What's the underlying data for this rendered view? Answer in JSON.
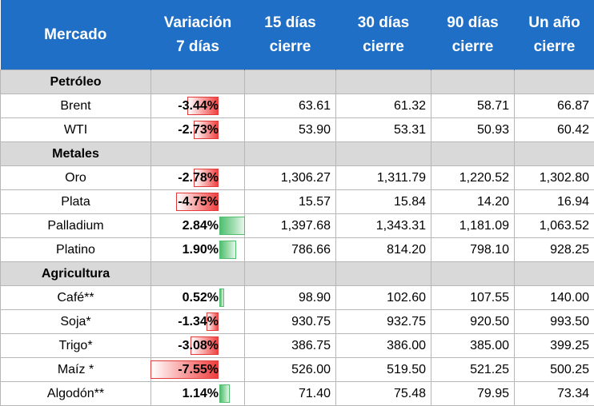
{
  "header": {
    "mercado": "Mercado",
    "variacion_line1": "Variación",
    "variacion_line2": "7 días",
    "d15_line1": "15 días",
    "d15_line2": "cierre",
    "d30_line1": "30 días",
    "d30_line2": "cierre",
    "d90_line1": "90 días",
    "d90_line2": "cierre",
    "y1_line1": "Un año",
    "y1_line2": "cierre"
  },
  "colors": {
    "header_bg": "#1f6fc6",
    "group_bg": "#d9d9d9",
    "neg_bar": "#ee3b3b",
    "pos_bar": "#4fbf6f"
  },
  "groups": [
    {
      "name": "Petróleo",
      "rows": [
        {
          "name": "Brent",
          "var": "-3.44%",
          "var_value": -3.44,
          "d15": "63.61",
          "d30": "61.32",
          "d90": "58.71",
          "y1": "66.87"
        },
        {
          "name": "WTI",
          "var": "-2.73%",
          "var_value": -2.73,
          "d15": "53.90",
          "d30": "53.31",
          "d90": "50.93",
          "y1": "60.42"
        }
      ]
    },
    {
      "name": "Metales",
      "rows": [
        {
          "name": "Oro",
          "var": "-2.78%",
          "var_value": -2.78,
          "d15": "1,306.27",
          "d30": "1,311.79",
          "d90": "1,220.52",
          "y1": "1,302.80"
        },
        {
          "name": "Plata",
          "var": "-4.75%",
          "var_value": -4.75,
          "d15": "15.57",
          "d30": "15.84",
          "d90": "14.20",
          "y1": "16.94"
        },
        {
          "name": "Palladium",
          "var": "2.84%",
          "var_value": 2.84,
          "d15": "1,397.68",
          "d30": "1,343.31",
          "d90": "1,181.09",
          "y1": "1,063.52"
        },
        {
          "name": "Platino",
          "var": "1.90%",
          "var_value": 1.9,
          "d15": "786.66",
          "d30": "814.20",
          "d90": "798.10",
          "y1": "928.25"
        }
      ]
    },
    {
      "name": "Agricultura",
      "rows": [
        {
          "name": "Café**",
          "var": "0.52%",
          "var_value": 0.52,
          "d15": "98.90",
          "d30": "102.60",
          "d90": "107.55",
          "y1": "140.00"
        },
        {
          "name": "Soja*",
          "var": "-1.34%",
          "var_value": -1.34,
          "d15": "930.75",
          "d30": "932.75",
          "d90": "920.50",
          "y1": "993.50"
        },
        {
          "name": "Trigo*",
          "var": "-3.08%",
          "var_value": -3.08,
          "d15": "386.75",
          "d30": "386.00",
          "d90": "385.00",
          "y1": "399.25"
        },
        {
          "name": "Maíz *",
          "var": "-7.55%",
          "var_value": -7.55,
          "d15": "526.00",
          "d30": "519.50",
          "d90": "521.25",
          "y1": "500.25"
        },
        {
          "name": "Algodón**",
          "var": "1.14%",
          "var_value": 1.14,
          "d15": "71.40",
          "d30": "75.48",
          "d90": "79.95",
          "y1": "73.34"
        }
      ]
    }
  ]
}
